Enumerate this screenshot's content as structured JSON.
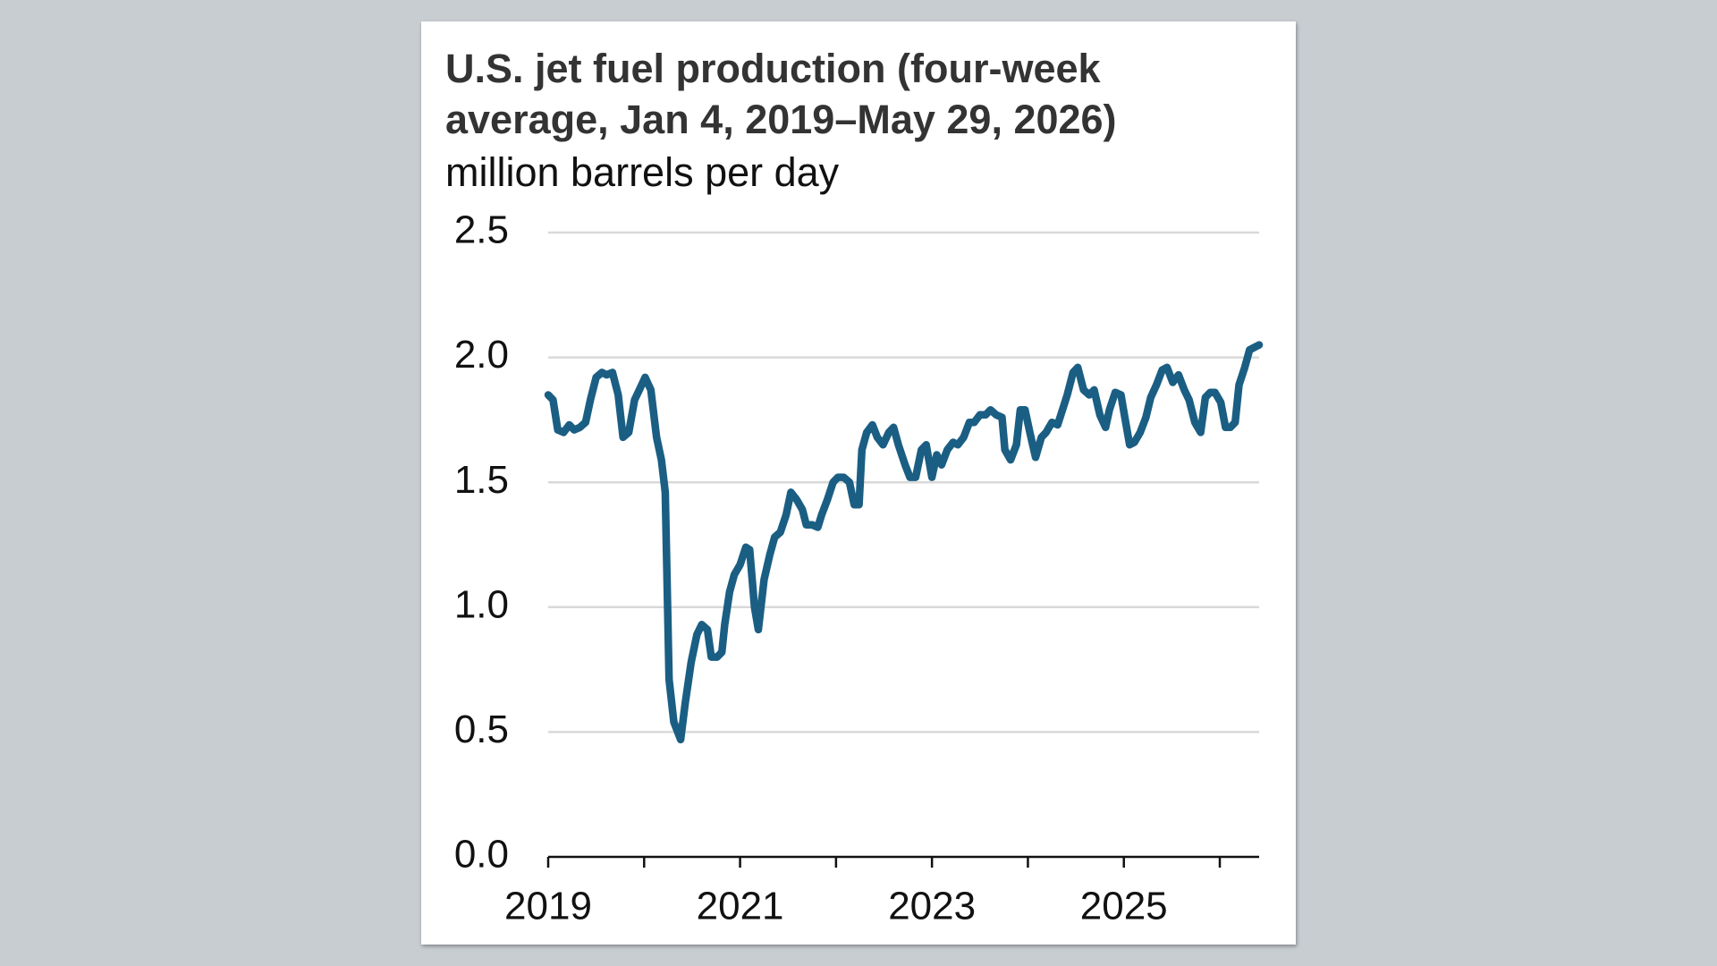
{
  "chart_data": {
    "type": "line",
    "title": "U.S. jet fuel production (four-week average, Jan 4, 2019–May 29, 2026)",
    "subtitle": "million barrels per day",
    "x": [
      2019.0,
      2019.05,
      2019.1,
      2019.16,
      2019.22,
      2019.27,
      2019.33,
      2019.39,
      2019.44,
      2019.5,
      2019.56,
      2019.61,
      2019.67,
      2019.73,
      2019.78,
      2019.84,
      2019.9,
      2019.95,
      2020.01,
      2020.07,
      2020.13,
      2020.18,
      2020.22,
      2020.26,
      2020.31,
      2020.38,
      2020.43,
      2020.49,
      2020.55,
      2020.6,
      2020.66,
      2020.7,
      2020.76,
      2020.81,
      2020.84,
      2020.89,
      2020.94,
      2021.0,
      2021.06,
      2021.1,
      2021.15,
      2021.19,
      2021.25,
      2021.31,
      2021.36,
      2021.42,
      2021.48,
      2021.53,
      2021.59,
      2021.65,
      2021.69,
      2021.75,
      2021.81,
      2021.85,
      2021.91,
      2021.97,
      2022.02,
      2022.08,
      2022.14,
      2022.19,
      2022.24,
      2022.27,
      2022.32,
      2022.38,
      2022.43,
      2022.49,
      2022.55,
      2022.6,
      2022.65,
      2022.72,
      2022.77,
      2022.83,
      2022.89,
      2022.94,
      2023.0,
      2023.05,
      2023.1,
      2023.16,
      2023.22,
      2023.27,
      2023.33,
      2023.39,
      2023.44,
      2023.5,
      2023.56,
      2023.61,
      2023.67,
      2023.73,
      2023.76,
      2023.82,
      2023.88,
      2023.92,
      2023.97,
      2024.02,
      2024.08,
      2024.14,
      2024.19,
      2024.25,
      2024.31,
      2024.36,
      2024.41,
      2024.47,
      2024.52,
      2024.58,
      2024.64,
      2024.69,
      2024.75,
      2024.81,
      2024.85,
      2024.91,
      2024.97,
      2025.01,
      2025.06,
      2025.11,
      2025.17,
      2025.23,
      2025.28,
      2025.34,
      2025.4,
      2025.45,
      2025.51,
      2025.57,
      2025.63,
      2025.68,
      2025.74,
      2025.8,
      2025.85,
      2025.9,
      2025.95,
      2026.01,
      2026.06,
      2026.11,
      2026.16,
      2026.2,
      2026.26,
      2026.31,
      2026.41
    ],
    "series": [
      {
        "color": "#1b5e83",
        "values": [
          1.85,
          1.83,
          1.71,
          1.7,
          1.73,
          1.71,
          1.72,
          1.74,
          1.83,
          1.92,
          1.94,
          1.93,
          1.94,
          1.85,
          1.68,
          1.7,
          1.83,
          1.87,
          1.92,
          1.87,
          1.68,
          1.59,
          1.46,
          0.71,
          0.54,
          0.47,
          0.62,
          0.78,
          0.89,
          0.93,
          0.91,
          0.8,
          0.8,
          0.82,
          0.93,
          1.06,
          1.13,
          1.17,
          1.24,
          1.23,
          1.0,
          0.91,
          1.11,
          1.21,
          1.28,
          1.3,
          1.37,
          1.46,
          1.43,
          1.39,
          1.33,
          1.33,
          1.32,
          1.37,
          1.43,
          1.5,
          1.52,
          1.52,
          1.5,
          1.41,
          1.41,
          1.63,
          1.7,
          1.73,
          1.68,
          1.65,
          1.7,
          1.72,
          1.65,
          1.57,
          1.52,
          1.52,
          1.63,
          1.65,
          1.52,
          1.61,
          1.57,
          1.63,
          1.66,
          1.65,
          1.68,
          1.74,
          1.74,
          1.77,
          1.77,
          1.79,
          1.77,
          1.76,
          1.63,
          1.59,
          1.65,
          1.79,
          1.79,
          1.7,
          1.6,
          1.68,
          1.7,
          1.74,
          1.73,
          1.79,
          1.85,
          1.94,
          1.96,
          1.87,
          1.85,
          1.87,
          1.77,
          1.72,
          1.79,
          1.86,
          1.85,
          1.76,
          1.65,
          1.66,
          1.7,
          1.76,
          1.84,
          1.89,
          1.95,
          1.96,
          1.9,
          1.93,
          1.87,
          1.83,
          1.74,
          1.7,
          1.84,
          1.86,
          1.86,
          1.82,
          1.72,
          1.72,
          1.74,
          1.89,
          1.96,
          2.03,
          2.05
        ]
      }
    ],
    "xlim": [
      2019,
      2026.41
    ],
    "xticks": [
      2019,
      2021,
      2023,
      2025
    ],
    "xminor_ticks": [
      2020,
      2022,
      2024,
      2026
    ],
    "ylim": [
      0,
      2.5
    ],
    "yticks": [
      {
        "value": 0,
        "label": "0.0"
      },
      0.5,
      {
        "value": 1,
        "label": "1.0"
      },
      1.5,
      {
        "value": 2,
        "label": "2.0"
      },
      2.5
    ],
    "grid": true
  }
}
